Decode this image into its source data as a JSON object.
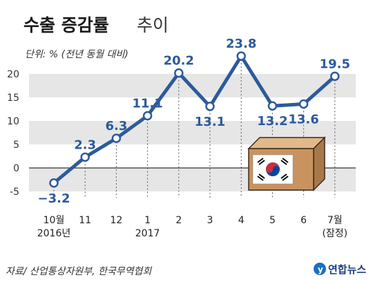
{
  "header": {
    "title_bold": "수출 증감률",
    "title_light": "추이",
    "unit": "단위: % (전년 동월 대비)"
  },
  "chart_data": {
    "type": "line",
    "title": "수출 증감률 추이",
    "unit": "단위: % (전년 동월 대비)",
    "categories": [
      "10월",
      "11",
      "12",
      "1",
      "2",
      "3",
      "4",
      "5",
      "6",
      "7월"
    ],
    "category_sublabels": [
      "2016년",
      "",
      "",
      "2017",
      "",
      "",
      "",
      "",
      "",
      "(잠정)"
    ],
    "values": [
      -3.2,
      2.3,
      6.3,
      11.1,
      20.2,
      13.1,
      23.8,
      13.2,
      13.6,
      19.5
    ],
    "value_labels": [
      "−3.2",
      "2.3",
      "6.3",
      "11.1",
      "20.2",
      "13.1",
      "23.8",
      "13.2",
      "13.6",
      "19.5"
    ],
    "ylim": [
      -5,
      20
    ],
    "yticks": [
      -5,
      0,
      5,
      10,
      15,
      20
    ],
    "grid": "horizontal bands",
    "line_color": "#2c5a9c"
  },
  "footer": {
    "source": "자료/ 산업통상자원부, 한국무역협회",
    "brand": "연합뉴스"
  }
}
